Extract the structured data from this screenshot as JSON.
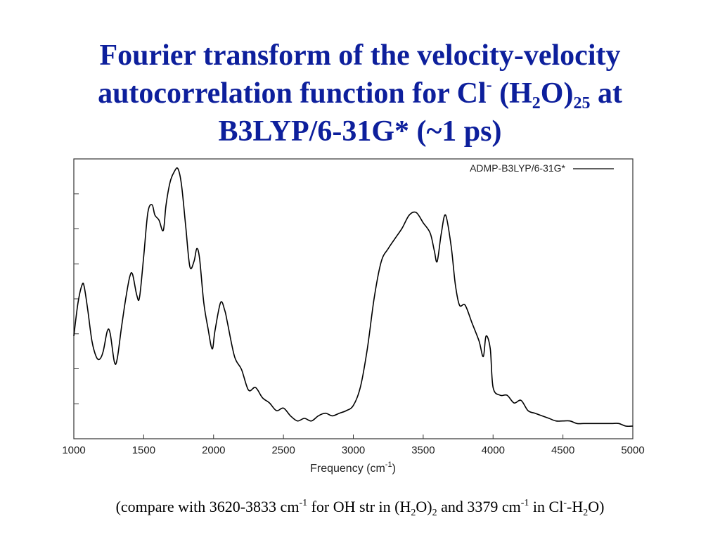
{
  "title": {
    "line1": "Fourier transform of the velocity-velocity",
    "line2_prefix": "autocorrelation function for Cl",
    "line2_sup": "-",
    "line2_mid": " (H",
    "line2_sub1": "2",
    "line2_mid2": "O)",
    "line2_sub2": "25",
    "line2_suffix": " at",
    "line3": "B3LYP/6-31G* (~1 ps)"
  },
  "caption": {
    "t1": "(compare with 3620-3833 cm",
    "s1": "-1",
    "t2": " for OH str in (H",
    "b1": "2",
    "t3": "O)",
    "b2": "2",
    "t4": " and 3379 cm",
    "s2": "-1",
    "t5": " in Cl",
    "s3": "-",
    "t6": "-H",
    "b3": "2",
    "t7": "O)"
  },
  "chart_data": {
    "type": "line",
    "title": "",
    "xlabel": "Frequency (cm",
    "xlabel_sup": "-1",
    "xlabel_end": ")",
    "ylabel": "",
    "xlim": [
      1000,
      5000
    ],
    "ylim": [
      0,
      1
    ],
    "xticks": [
      1000,
      1500,
      2000,
      2500,
      3000,
      3500,
      4000,
      4500,
      5000
    ],
    "yticks_count": 8,
    "grid": false,
    "legend_position": "top-right",
    "series": [
      {
        "name": "ADMP-B3LYP/6-31G*",
        "color": "#000000",
        "x": [
          1000,
          1030,
          1060,
          1075,
          1100,
          1130,
          1160,
          1185,
          1210,
          1240,
          1260,
          1290,
          1310,
          1340,
          1370,
          1400,
          1420,
          1450,
          1470,
          1500,
          1530,
          1560,
          1580,
          1610,
          1640,
          1660,
          1690,
          1720,
          1745,
          1770,
          1800,
          1830,
          1860,
          1880,
          1900,
          1930,
          1960,
          1990,
          2010,
          2050,
          2080,
          2100,
          2150,
          2200,
          2250,
          2300,
          2350,
          2400,
          2450,
          2500,
          2550,
          2600,
          2650,
          2700,
          2750,
          2800,
          2850,
          2900,
          2950,
          3000,
          3050,
          3100,
          3150,
          3200,
          3250,
          3300,
          3350,
          3400,
          3450,
          3500,
          3550,
          3580,
          3600,
          3630,
          3660,
          3700,
          3730,
          3760,
          3800,
          3850,
          3900,
          3930,
          3950,
          3980,
          4000,
          4050,
          4100,
          4150,
          4200,
          4250,
          4300,
          4350,
          4400,
          4450,
          4500,
          4550,
          4600,
          4650,
          4700,
          4750,
          4800,
          4850,
          4900,
          4950,
          5000
        ],
        "values": [
          0.35,
          0.48,
          0.55,
          0.54,
          0.45,
          0.33,
          0.27,
          0.26,
          0.29,
          0.37,
          0.36,
          0.25,
          0.26,
          0.38,
          0.49,
          0.58,
          0.59,
          0.51,
          0.5,
          0.66,
          0.83,
          0.86,
          0.82,
          0.8,
          0.76,
          0.86,
          0.95,
          0.99,
          1.0,
          0.94,
          0.78,
          0.62,
          0.64,
          0.69,
          0.65,
          0.48,
          0.38,
          0.3,
          0.37,
          0.48,
          0.45,
          0.4,
          0.27,
          0.22,
          0.14,
          0.15,
          0.11,
          0.09,
          0.06,
          0.07,
          0.04,
          0.02,
          0.03,
          0.02,
          0.04,
          0.05,
          0.04,
          0.05,
          0.06,
          0.08,
          0.15,
          0.3,
          0.5,
          0.64,
          0.69,
          0.73,
          0.77,
          0.82,
          0.83,
          0.79,
          0.75,
          0.68,
          0.64,
          0.75,
          0.82,
          0.7,
          0.55,
          0.47,
          0.47,
          0.4,
          0.33,
          0.27,
          0.35,
          0.3,
          0.15,
          0.12,
          0.12,
          0.09,
          0.1,
          0.06,
          0.05,
          0.04,
          0.03,
          0.02,
          0.02,
          0.02,
          0.01,
          0.01,
          0.01,
          0.01,
          0.01,
          0.01,
          0.01,
          0.0,
          0.0
        ]
      }
    ]
  }
}
